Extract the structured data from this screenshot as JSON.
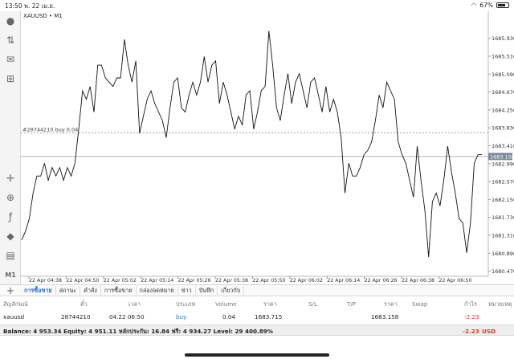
{
  "status": {
    "time": "13:50",
    "date": "พ. 22 เม.ย.",
    "wifi_icon": "wifi-icon",
    "battery": "67%"
  },
  "chart": {
    "symbol": "XAUUSD",
    "timeframe": "M1",
    "order_label": "#28744210 buy 0.04",
    "current_price_label": "1683.158"
  },
  "chart_data": {
    "type": "line",
    "title": "XAUUSD • M1",
    "ylim": [
      1680.5,
      1686.3
    ],
    "y_ticks": [
      "1685.930",
      "1685.510",
      "1685.090",
      "1684.670",
      "1684.250",
      "1683.830",
      "1683.410",
      "1682.990",
      "1682.570",
      "1682.150",
      "1681.730",
      "1681.310",
      "1680.890",
      "1680.470"
    ],
    "x_ticks": [
      "22 Apr 04:38",
      "22 Apr 04:50",
      "22 Apr 05:02",
      "22 Apr 05:14",
      "22 Apr 05:26",
      "22 Apr 05:38",
      "22 Apr 05:50",
      "22 Apr 06:02",
      "22 Apr 06:14",
      "22 Apr 06:26",
      "22 Apr 06:38",
      "22 Apr 06:50"
    ],
    "order_line_price": 1683.715,
    "current_price": 1683.158,
    "series": [
      {
        "values": [
          1681.2,
          1681.4,
          1681.7,
          1682.3,
          1682.7,
          1682.7,
          1683.0,
          1682.6,
          1682.9,
          1682.7,
          1682.9,
          1682.6,
          1682.9,
          1682.7,
          1683.0,
          1683.8,
          1684.7,
          1684.5,
          1684.8,
          1684.2,
          1685.3,
          1685.3,
          1685.0,
          1684.9,
          1684.8,
          1685.0,
          1685.0,
          1685.9,
          1685.3,
          1684.9,
          1685.4,
          1683.7,
          1684.1,
          1684.5,
          1684.7,
          1684.4,
          1684.2,
          1684.0,
          1683.6,
          1684.3,
          1684.9,
          1685.0,
          1684.3,
          1684.2,
          1684.6,
          1684.9,
          1684.6,
          1684.9,
          1685.5,
          1684.9,
          1685.3,
          1685.4,
          1684.4,
          1684.9,
          1684.6,
          1684.2,
          1683.8,
          1684.1,
          1683.9,
          1684.6,
          1684.7,
          1683.8,
          1684.2,
          1684.7,
          1684.8,
          1686.1,
          1685.3,
          1684.3,
          1684.0,
          1684.6,
          1685.1,
          1684.4,
          1684.9,
          1685.1,
          1684.7,
          1684.3,
          1684.9,
          1685.0,
          1684.6,
          1684.2,
          1684.8,
          1684.2,
          1684.5,
          1684.2,
          1683.6,
          1682.3,
          1683.0,
          1682.7,
          1682.7,
          1682.9,
          1683.2,
          1683.3,
          1683.5,
          1684.0,
          1684.6,
          1684.3,
          1684.9,
          1684.7,
          1684.5,
          1683.5,
          1683.2,
          1683.0,
          1682.6,
          1682.2,
          1683.4,
          1682.6,
          1681.9,
          1680.8,
          1682.1,
          1682.3,
          1682.0,
          1682.6,
          1683.4,
          1682.8,
          1682.3,
          1681.7,
          1681.6,
          1680.9,
          1681.6,
          1683.0,
          1683.2,
          1683.2
        ]
      }
    ]
  },
  "tabs": [
    {
      "label": "การซื้อขาย",
      "active": true
    },
    {
      "label": "สถานะ"
    },
    {
      "label": "คำสั่ง"
    },
    {
      "label": "การซื้อขาย"
    },
    {
      "label": "กล่องจดหมาย"
    },
    {
      "label": "ข่าว"
    },
    {
      "label": "บันทึก"
    },
    {
      "label": "เกี่ยวกับ"
    }
  ],
  "table": {
    "headers": [
      "สัญลักษณ์",
      "ตั๋ว",
      "เวลา",
      "ประเภท",
      "Volume",
      "ราคา",
      "S/L",
      "T/P",
      "ราคา",
      "Swap",
      "กำไร",
      "หมายเหตุ"
    ],
    "row": {
      "symbol": "xauusd",
      "ticket": "28744210",
      "time": "04.22 06:50",
      "type": "buy",
      "volume": "0.04",
      "open_price": "1683.715",
      "sl": "",
      "tp": "",
      "price": "1683.158",
      "swap": "",
      "profit": "-2.23"
    }
  },
  "balance": {
    "text": "Balance: 4 953.34 Equity: 4 951.11 หลักประกัน: 16.84 ฟรี: 4 934.27 Level: 29 400.89%",
    "total": "-2.23",
    "currency": "USD"
  },
  "colors": {
    "accent": "#2a6fd1",
    "loss": "#e03030",
    "line": "#111111"
  }
}
